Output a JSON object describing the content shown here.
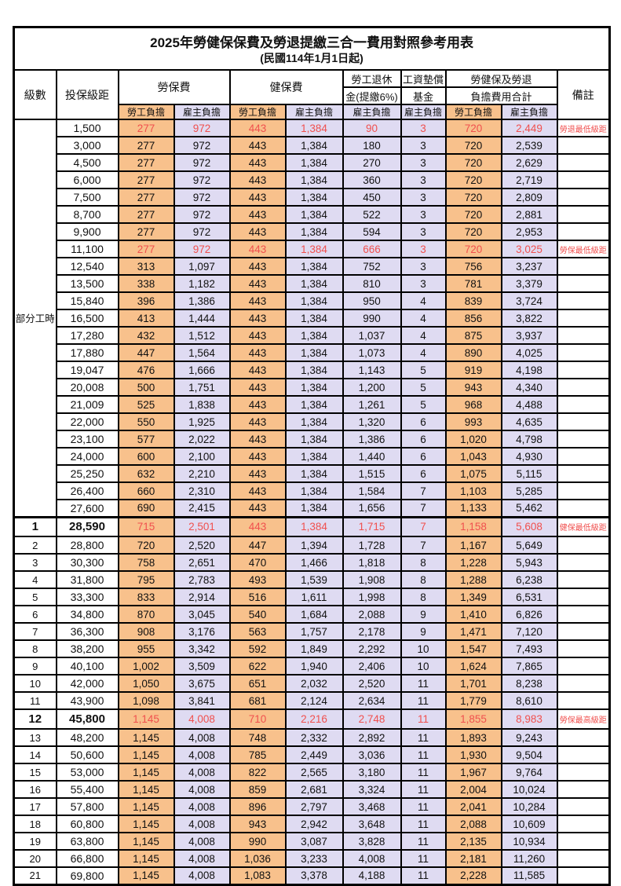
{
  "title": "2025年勞健保保費及勞退提繳三合一費用對照參考用表",
  "subtitle": "(民國114年1月1日起)",
  "colors": {
    "employee_burden_bg": "#f8c18c",
    "employer_burden_bg": "#dfdbf2",
    "highlight_text": "#f0504e",
    "border": "#000000"
  },
  "header": {
    "level": "級數",
    "bracket": "投保級距",
    "labor_fee": "勞保費",
    "health_fee": "健保費",
    "pension_line1": "勞工退休",
    "pension_line2": "金(提繳6%)",
    "wage_fund_line1": "工資墊償",
    "wage_fund_line2": "基金",
    "total_line1": "勞健保及勞退",
    "total_line2": "負擔費用合計",
    "remark": "備註",
    "employee_burden": "勞工負擔",
    "employer_burden": "雇主負擔"
  },
  "group_label": "部分工時",
  "group_rows": 23,
  "rows": [
    {
      "level": "",
      "bracket": "1,500",
      "labor_emp": "277",
      "labor_er": "972",
      "health_emp": "443",
      "health_er": "1,384",
      "pension_er": "90",
      "fund_er": "3",
      "total_emp": "720",
      "total_er": "2,449",
      "remark": "勞退最低級距",
      "highlight": true,
      "bold": false
    },
    {
      "level": "",
      "bracket": "3,000",
      "labor_emp": "277",
      "labor_er": "972",
      "health_emp": "443",
      "health_er": "1,384",
      "pension_er": "180",
      "fund_er": "3",
      "total_emp": "720",
      "total_er": "2,539",
      "remark": "",
      "highlight": false,
      "bold": false
    },
    {
      "level": "",
      "bracket": "4,500",
      "labor_emp": "277",
      "labor_er": "972",
      "health_emp": "443",
      "health_er": "1,384",
      "pension_er": "270",
      "fund_er": "3",
      "total_emp": "720",
      "total_er": "2,629",
      "remark": "",
      "highlight": false,
      "bold": false
    },
    {
      "level": "",
      "bracket": "6,000",
      "labor_emp": "277",
      "labor_er": "972",
      "health_emp": "443",
      "health_er": "1,384",
      "pension_er": "360",
      "fund_er": "3",
      "total_emp": "720",
      "total_er": "2,719",
      "remark": "",
      "highlight": false,
      "bold": false
    },
    {
      "level": "",
      "bracket": "7,500",
      "labor_emp": "277",
      "labor_er": "972",
      "health_emp": "443",
      "health_er": "1,384",
      "pension_er": "450",
      "fund_er": "3",
      "total_emp": "720",
      "total_er": "2,809",
      "remark": "",
      "highlight": false,
      "bold": false
    },
    {
      "level": "",
      "bracket": "8,700",
      "labor_emp": "277",
      "labor_er": "972",
      "health_emp": "443",
      "health_er": "1,384",
      "pension_er": "522",
      "fund_er": "3",
      "total_emp": "720",
      "total_er": "2,881",
      "remark": "",
      "highlight": false,
      "bold": false
    },
    {
      "level": "",
      "bracket": "9,900",
      "labor_emp": "277",
      "labor_er": "972",
      "health_emp": "443",
      "health_er": "1,384",
      "pension_er": "594",
      "fund_er": "3",
      "total_emp": "720",
      "total_er": "2,953",
      "remark": "",
      "highlight": false,
      "bold": false
    },
    {
      "level": "",
      "bracket": "11,100",
      "labor_emp": "277",
      "labor_er": "972",
      "health_emp": "443",
      "health_er": "1,384",
      "pension_er": "666",
      "fund_er": "3",
      "total_emp": "720",
      "total_er": "3,025",
      "remark": "勞保最低級距",
      "highlight": true,
      "bold": false
    },
    {
      "level": "",
      "bracket": "12,540",
      "labor_emp": "313",
      "labor_er": "1,097",
      "health_emp": "443",
      "health_er": "1,384",
      "pension_er": "752",
      "fund_er": "3",
      "total_emp": "756",
      "total_er": "3,237",
      "remark": "",
      "highlight": false,
      "bold": false
    },
    {
      "level": "",
      "bracket": "13,500",
      "labor_emp": "338",
      "labor_er": "1,182",
      "health_emp": "443",
      "health_er": "1,384",
      "pension_er": "810",
      "fund_er": "3",
      "total_emp": "781",
      "total_er": "3,379",
      "remark": "",
      "highlight": false,
      "bold": false
    },
    {
      "level": "",
      "bracket": "15,840",
      "labor_emp": "396",
      "labor_er": "1,386",
      "health_emp": "443",
      "health_er": "1,384",
      "pension_er": "950",
      "fund_er": "4",
      "total_emp": "839",
      "total_er": "3,724",
      "remark": "",
      "highlight": false,
      "bold": false
    },
    {
      "level": "",
      "bracket": "16,500",
      "labor_emp": "413",
      "labor_er": "1,444",
      "health_emp": "443",
      "health_er": "1,384",
      "pension_er": "990",
      "fund_er": "4",
      "total_emp": "856",
      "total_er": "3,822",
      "remark": "",
      "highlight": false,
      "bold": false
    },
    {
      "level": "",
      "bracket": "17,280",
      "labor_emp": "432",
      "labor_er": "1,512",
      "health_emp": "443",
      "health_er": "1,384",
      "pension_er": "1,037",
      "fund_er": "4",
      "total_emp": "875",
      "total_er": "3,937",
      "remark": "",
      "highlight": false,
      "bold": false
    },
    {
      "level": "",
      "bracket": "17,880",
      "labor_emp": "447",
      "labor_er": "1,564",
      "health_emp": "443",
      "health_er": "1,384",
      "pension_er": "1,073",
      "fund_er": "4",
      "total_emp": "890",
      "total_er": "4,025",
      "remark": "",
      "highlight": false,
      "bold": false
    },
    {
      "level": "",
      "bracket": "19,047",
      "labor_emp": "476",
      "labor_er": "1,666",
      "health_emp": "443",
      "health_er": "1,384",
      "pension_er": "1,143",
      "fund_er": "5",
      "total_emp": "919",
      "total_er": "4,198",
      "remark": "",
      "highlight": false,
      "bold": false
    },
    {
      "level": "",
      "bracket": "20,008",
      "labor_emp": "500",
      "labor_er": "1,751",
      "health_emp": "443",
      "health_er": "1,384",
      "pension_er": "1,200",
      "fund_er": "5",
      "total_emp": "943",
      "total_er": "4,340",
      "remark": "",
      "highlight": false,
      "bold": false
    },
    {
      "level": "",
      "bracket": "21,009",
      "labor_emp": "525",
      "labor_er": "1,838",
      "health_emp": "443",
      "health_er": "1,384",
      "pension_er": "1,261",
      "fund_er": "5",
      "total_emp": "968",
      "total_er": "4,488",
      "remark": "",
      "highlight": false,
      "bold": false
    },
    {
      "level": "",
      "bracket": "22,000",
      "labor_emp": "550",
      "labor_er": "1,925",
      "health_emp": "443",
      "health_er": "1,384",
      "pension_er": "1,320",
      "fund_er": "6",
      "total_emp": "993",
      "total_er": "4,635",
      "remark": "",
      "highlight": false,
      "bold": false
    },
    {
      "level": "",
      "bracket": "23,100",
      "labor_emp": "577",
      "labor_er": "2,022",
      "health_emp": "443",
      "health_er": "1,384",
      "pension_er": "1,386",
      "fund_er": "6",
      "total_emp": "1,020",
      "total_er": "4,798",
      "remark": "",
      "highlight": false,
      "bold": false
    },
    {
      "level": "",
      "bracket": "24,000",
      "labor_emp": "600",
      "labor_er": "2,100",
      "health_emp": "443",
      "health_er": "1,384",
      "pension_er": "1,440",
      "fund_er": "6",
      "total_emp": "1,043",
      "total_er": "4,930",
      "remark": "",
      "highlight": false,
      "bold": false
    },
    {
      "level": "",
      "bracket": "25,250",
      "labor_emp": "632",
      "labor_er": "2,210",
      "health_emp": "443",
      "health_er": "1,384",
      "pension_er": "1,515",
      "fund_er": "6",
      "total_emp": "1,075",
      "total_er": "5,115",
      "remark": "",
      "highlight": false,
      "bold": false
    },
    {
      "level": "",
      "bracket": "26,400",
      "labor_emp": "660",
      "labor_er": "2,310",
      "health_emp": "443",
      "health_er": "1,384",
      "pension_er": "1,584",
      "fund_er": "7",
      "total_emp": "1,103",
      "total_er": "5,285",
      "remark": "",
      "highlight": false,
      "bold": false
    },
    {
      "level": "",
      "bracket": "27,600",
      "labor_emp": "690",
      "labor_er": "2,415",
      "health_emp": "443",
      "health_er": "1,384",
      "pension_er": "1,656",
      "fund_er": "7",
      "total_emp": "1,133",
      "total_er": "5,462",
      "remark": "",
      "highlight": false,
      "bold": false
    },
    {
      "level": "1",
      "bracket": "28,590",
      "labor_emp": "715",
      "labor_er": "2,501",
      "health_emp": "443",
      "health_er": "1,384",
      "pension_er": "1,715",
      "fund_er": "7",
      "total_emp": "1,158",
      "total_er": "5,608",
      "remark": "健保最低級距",
      "highlight": true,
      "bold": true,
      "section_start": true
    },
    {
      "level": "2",
      "bracket": "28,800",
      "labor_emp": "720",
      "labor_er": "2,520",
      "health_emp": "447",
      "health_er": "1,394",
      "pension_er": "1,728",
      "fund_er": "7",
      "total_emp": "1,167",
      "total_er": "5,649",
      "remark": "",
      "highlight": false,
      "bold": false
    },
    {
      "level": "3",
      "bracket": "30,300",
      "labor_emp": "758",
      "labor_er": "2,651",
      "health_emp": "470",
      "health_er": "1,466",
      "pension_er": "1,818",
      "fund_er": "8",
      "total_emp": "1,228",
      "total_er": "5,943",
      "remark": "",
      "highlight": false,
      "bold": false
    },
    {
      "level": "4",
      "bracket": "31,800",
      "labor_emp": "795",
      "labor_er": "2,783",
      "health_emp": "493",
      "health_er": "1,539",
      "pension_er": "1,908",
      "fund_er": "8",
      "total_emp": "1,288",
      "total_er": "6,238",
      "remark": "",
      "highlight": false,
      "bold": false
    },
    {
      "level": "5",
      "bracket": "33,300",
      "labor_emp": "833",
      "labor_er": "2,914",
      "health_emp": "516",
      "health_er": "1,611",
      "pension_er": "1,998",
      "fund_er": "8",
      "total_emp": "1,349",
      "total_er": "6,531",
      "remark": "",
      "highlight": false,
      "bold": false
    },
    {
      "level": "6",
      "bracket": "34,800",
      "labor_emp": "870",
      "labor_er": "3,045",
      "health_emp": "540",
      "health_er": "1,684",
      "pension_er": "2,088",
      "fund_er": "9",
      "total_emp": "1,410",
      "total_er": "6,826",
      "remark": "",
      "highlight": false,
      "bold": false
    },
    {
      "level": "7",
      "bracket": "36,300",
      "labor_emp": "908",
      "labor_er": "3,176",
      "health_emp": "563",
      "health_er": "1,757",
      "pension_er": "2,178",
      "fund_er": "9",
      "total_emp": "1,471",
      "total_er": "7,120",
      "remark": "",
      "highlight": false,
      "bold": false
    },
    {
      "level": "8",
      "bracket": "38,200",
      "labor_emp": "955",
      "labor_er": "3,342",
      "health_emp": "592",
      "health_er": "1,849",
      "pension_er": "2,292",
      "fund_er": "10",
      "total_emp": "1,547",
      "total_er": "7,493",
      "remark": "",
      "highlight": false,
      "bold": false
    },
    {
      "level": "9",
      "bracket": "40,100",
      "labor_emp": "1,002",
      "labor_er": "3,509",
      "health_emp": "622",
      "health_er": "1,940",
      "pension_er": "2,406",
      "fund_er": "10",
      "total_emp": "1,624",
      "total_er": "7,865",
      "remark": "",
      "highlight": false,
      "bold": false
    },
    {
      "level": "10",
      "bracket": "42,000",
      "labor_emp": "1,050",
      "labor_er": "3,675",
      "health_emp": "651",
      "health_er": "2,032",
      "pension_er": "2,520",
      "fund_er": "11",
      "total_emp": "1,701",
      "total_er": "8,238",
      "remark": "",
      "highlight": false,
      "bold": false
    },
    {
      "level": "11",
      "bracket": "43,900",
      "labor_emp": "1,098",
      "labor_er": "3,841",
      "health_emp": "681",
      "health_er": "2,124",
      "pension_er": "2,634",
      "fund_er": "11",
      "total_emp": "1,779",
      "total_er": "8,610",
      "remark": "",
      "highlight": false,
      "bold": false
    },
    {
      "level": "12",
      "bracket": "45,800",
      "labor_emp": "1,145",
      "labor_er": "4,008",
      "health_emp": "710",
      "health_er": "2,216",
      "pension_er": "2,748",
      "fund_er": "11",
      "total_emp": "1,855",
      "total_er": "8,983",
      "remark": "勞保最高級距",
      "highlight": true,
      "bold": true
    },
    {
      "level": "13",
      "bracket": "48,200",
      "labor_emp": "1,145",
      "labor_er": "4,008",
      "health_emp": "748",
      "health_er": "2,332",
      "pension_er": "2,892",
      "fund_er": "11",
      "total_emp": "1,893",
      "total_er": "9,243",
      "remark": "",
      "highlight": false,
      "bold": false
    },
    {
      "level": "14",
      "bracket": "50,600",
      "labor_emp": "1,145",
      "labor_er": "4,008",
      "health_emp": "785",
      "health_er": "2,449",
      "pension_er": "3,036",
      "fund_er": "11",
      "total_emp": "1,930",
      "total_er": "9,504",
      "remark": "",
      "highlight": false,
      "bold": false
    },
    {
      "level": "15",
      "bracket": "53,000",
      "labor_emp": "1,145",
      "labor_er": "4,008",
      "health_emp": "822",
      "health_er": "2,565",
      "pension_er": "3,180",
      "fund_er": "11",
      "total_emp": "1,967",
      "total_er": "9,764",
      "remark": "",
      "highlight": false,
      "bold": false
    },
    {
      "level": "16",
      "bracket": "55,400",
      "labor_emp": "1,145",
      "labor_er": "4,008",
      "health_emp": "859",
      "health_er": "2,681",
      "pension_er": "3,324",
      "fund_er": "11",
      "total_emp": "2,004",
      "total_er": "10,024",
      "remark": "",
      "highlight": false,
      "bold": false
    },
    {
      "level": "17",
      "bracket": "57,800",
      "labor_emp": "1,145",
      "labor_er": "4,008",
      "health_emp": "896",
      "health_er": "2,797",
      "pension_er": "3,468",
      "fund_er": "11",
      "total_emp": "2,041",
      "total_er": "10,284",
      "remark": "",
      "highlight": false,
      "bold": false
    },
    {
      "level": "18",
      "bracket": "60,800",
      "labor_emp": "1,145",
      "labor_er": "4,008",
      "health_emp": "943",
      "health_er": "2,942",
      "pension_er": "3,648",
      "fund_er": "11",
      "total_emp": "2,088",
      "total_er": "10,609",
      "remark": "",
      "highlight": false,
      "bold": false
    },
    {
      "level": "19",
      "bracket": "63,800",
      "labor_emp": "1,145",
      "labor_er": "4,008",
      "health_emp": "990",
      "health_er": "3,087",
      "pension_er": "3,828",
      "fund_er": "11",
      "total_emp": "2,135",
      "total_er": "10,934",
      "remark": "",
      "highlight": false,
      "bold": false
    },
    {
      "level": "20",
      "bracket": "66,800",
      "labor_emp": "1,145",
      "labor_er": "4,008",
      "health_emp": "1,036",
      "health_er": "3,233",
      "pension_er": "4,008",
      "fund_er": "11",
      "total_emp": "2,181",
      "total_er": "11,260",
      "remark": "",
      "highlight": false,
      "bold": false
    },
    {
      "level": "21",
      "bracket": "69,800",
      "labor_emp": "1,145",
      "labor_er": "4,008",
      "health_emp": "1,083",
      "health_er": "3,378",
      "pension_er": "4,188",
      "fund_er": "11",
      "total_emp": "2,228",
      "total_er": "11,585",
      "remark": "",
      "highlight": false,
      "bold": false
    }
  ]
}
